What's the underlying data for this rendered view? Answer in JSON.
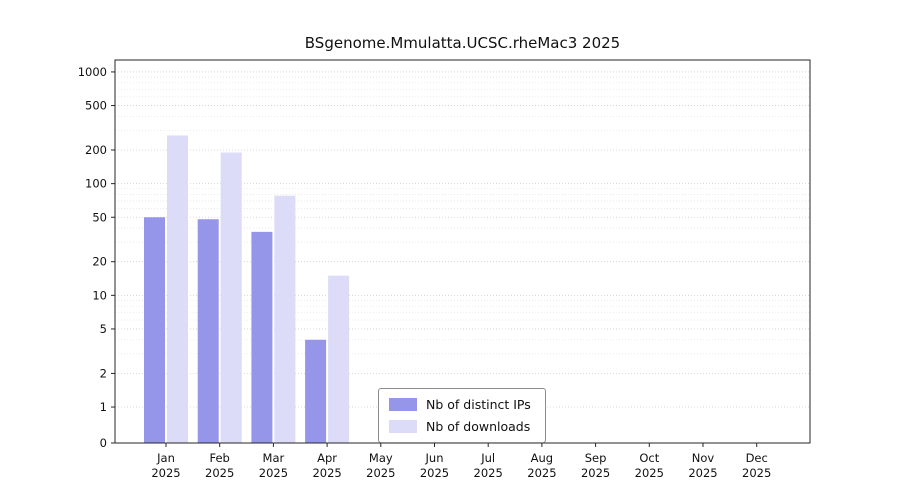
{
  "chart_data": {
    "type": "bar",
    "title": "BSgenome.Mmulatta.UCSC.rheMac3 2025",
    "categories": [
      "Jan 2025",
      "Feb 2025",
      "Mar 2025",
      "Apr 2025",
      "May 2025",
      "Jun 2025",
      "Jul 2025",
      "Aug 2025",
      "Sep 2025",
      "Oct 2025",
      "Nov 2025",
      "Dec 2025"
    ],
    "series": [
      {
        "name": "Nb of distinct IPs",
        "color": "#9595ea",
        "values": [
          50,
          48,
          37,
          4,
          0,
          0,
          0,
          0,
          0,
          0,
          0,
          0
        ]
      },
      {
        "name": "Nb of downloads",
        "color": "#dcdcf8",
        "values": [
          270,
          190,
          78,
          15,
          0,
          0,
          0,
          0,
          0,
          0,
          0,
          0
        ]
      }
    ],
    "yscale": "log",
    "yticks": [
      0,
      1,
      2,
      5,
      10,
      20,
      50,
      100,
      200,
      500,
      1000
    ],
    "ylim": [
      0,
      1280
    ],
    "xlabel": "",
    "ylabel": "",
    "grid": true,
    "legend_position": "bottom-center",
    "axis_color": "#262626",
    "grid_color": "#cfcfcf",
    "minor_grid_color": "#e6e6e6"
  }
}
